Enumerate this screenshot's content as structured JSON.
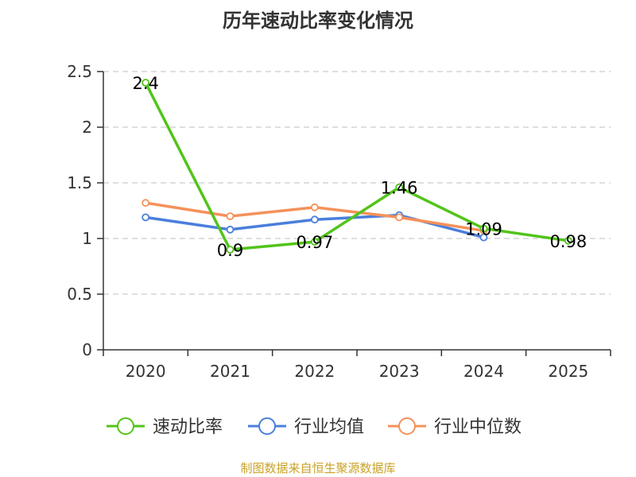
{
  "source_note": "制图数据来自恒生聚源数据库",
  "colors": {
    "series_1": "#52c41a",
    "series_2": "#4a7fdb",
    "series_3": "#f5915a",
    "source": "#c9a227",
    "grid": "#cccccc",
    "axis": "#333333"
  },
  "chart_data": {
    "type": "line",
    "title": "历年速动比率变化情况",
    "categories": [
      "2020",
      "2021",
      "2022",
      "2023",
      "2024",
      "2025"
    ],
    "ylim": [
      0,
      2.5
    ],
    "yticks": [
      "0",
      "0.5",
      "1",
      "1.5",
      "2",
      "2.5"
    ],
    "ytick_values": [
      0,
      0.5,
      1,
      1.5,
      2,
      2.5
    ],
    "grid": true,
    "legend_position": "bottom",
    "series": [
      {
        "name": "速动比率",
        "values": [
          2.4,
          0.9,
          0.97,
          1.46,
          1.09,
          0.98
        ],
        "labels": [
          "2.4",
          "0.9",
          "0.97",
          "1.46",
          "1.09",
          "0.98"
        ]
      },
      {
        "name": "行业均值",
        "values": [
          1.19,
          1.08,
          1.17,
          1.21,
          1.01,
          null
        ]
      },
      {
        "name": "行业中位数",
        "values": [
          1.32,
          1.2,
          1.28,
          1.19,
          1.07,
          null
        ]
      }
    ]
  }
}
